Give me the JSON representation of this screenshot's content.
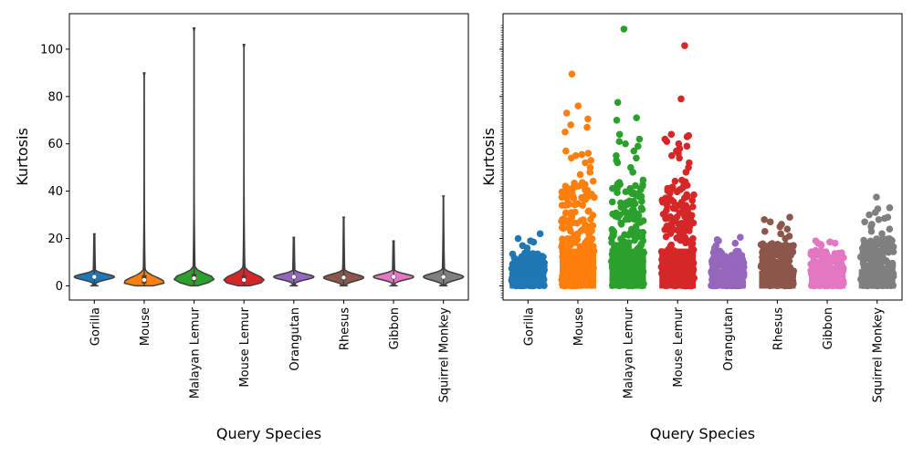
{
  "chart_data": [
    {
      "type": "violin",
      "title": "",
      "xlabel": "Query Species",
      "ylabel": "Kurtosis",
      "ylim": [
        -6,
        115
      ],
      "yticks": [
        0,
        20,
        40,
        60,
        80,
        100
      ],
      "grid": false,
      "categories": [
        "Gorilla",
        "Mouse",
        "Malayan Lemur",
        "Mouse Lemur",
        "Orangutan",
        "Rhesus",
        "Gibbon",
        "Squirrel Monkey"
      ],
      "colors": [
        "#1f77b4",
        "#ff7f0e",
        "#2ca02c",
        "#d62728",
        "#9467bd",
        "#8c564b",
        "#e377c2",
        "#7f7f7f"
      ],
      "series": [
        {
          "min": 0,
          "q1": 3.0,
          "median": 3.8,
          "q3": 4.5,
          "max": 22,
          "peak": 3.8,
          "spread": 1.2
        },
        {
          "min": 0,
          "q1": 1.0,
          "median": 2.5,
          "q3": 4.5,
          "max": 90,
          "peak": 1.5,
          "spread": 2.2
        },
        {
          "min": 0,
          "q1": 2.0,
          "median": 3.2,
          "q3": 5.0,
          "max": 109,
          "peak": 3.0,
          "spread": 2.0
        },
        {
          "min": 0,
          "q1": 1.5,
          "median": 2.5,
          "q3": 4.5,
          "max": 102,
          "peak": 2.5,
          "spread": 2.2
        },
        {
          "min": 0,
          "q1": 3.0,
          "median": 3.8,
          "q3": 4.5,
          "max": 20.5,
          "peak": 3.8,
          "spread": 1.2
        },
        {
          "min": 0,
          "q1": 2.5,
          "median": 3.5,
          "q3": 4.5,
          "max": 29,
          "peak": 3.5,
          "spread": 1.4
        },
        {
          "min": 0,
          "q1": 3.0,
          "median": 3.8,
          "q3": 4.5,
          "max": 19,
          "peak": 3.8,
          "spread": 1.2
        },
        {
          "min": 0,
          "q1": 3.0,
          "median": 3.8,
          "q3": 4.8,
          "max": 38,
          "peak": 3.8,
          "spread": 1.4
        }
      ]
    },
    {
      "type": "strip",
      "title": "",
      "xlabel": "Query Species",
      "ylabel": "Kurtosis",
      "ylim": [
        -6,
        115
      ],
      "yticks": [
        0,
        20,
        40,
        60,
        80,
        100
      ],
      "grid": false,
      "categories": [
        "Gorilla",
        "Mouse",
        "Malayan Lemur",
        "Mouse Lemur",
        "Orangutan",
        "Rhesus",
        "Gibbon",
        "Squirrel Monkey"
      ],
      "colors": [
        "#1f77b4",
        "#ff7f0e",
        "#2ca02c",
        "#d62728",
        "#9467bd",
        "#8c564b",
        "#e377c2",
        "#7f7f7f"
      ],
      "series": [
        {
          "dense_top": 14,
          "outliers": [
            22,
            20,
            19,
            18.5,
            17,
            16
          ]
        },
        {
          "dense_top": 45,
          "outliers": [
            89.5,
            76,
            73,
            70.5,
            68,
            67,
            65,
            57,
            56,
            55.5,
            55,
            54,
            53,
            52,
            50,
            48,
            47
          ]
        },
        {
          "dense_top": 45,
          "outliers": [
            108.5,
            77.5,
            71,
            70,
            64,
            62,
            61,
            60,
            59,
            57,
            55,
            54,
            53,
            52,
            50,
            48
          ]
        },
        {
          "dense_top": 45,
          "outliers": [
            101.5,
            79,
            64,
            63.5,
            63,
            62,
            61,
            60,
            59,
            58,
            57,
            56,
            55,
            54,
            52,
            50,
            48
          ]
        },
        {
          "dense_top": 15,
          "outliers": [
            20.5,
            19.5,
            19,
            18,
            17,
            16
          ]
        },
        {
          "dense_top": 18,
          "outliers": [
            29,
            28,
            27,
            26,
            25,
            24,
            23,
            22,
            21,
            20
          ]
        },
        {
          "dense_top": 15,
          "outliers": [
            19,
            18.5,
            18.5,
            18,
            18,
            17.5,
            17
          ]
        },
        {
          "dense_top": 20,
          "outliers": [
            37.5,
            33,
            32.5,
            31,
            30,
            29,
            28.5,
            28,
            27,
            26,
            25,
            24,
            23,
            22
          ]
        }
      ]
    }
  ]
}
